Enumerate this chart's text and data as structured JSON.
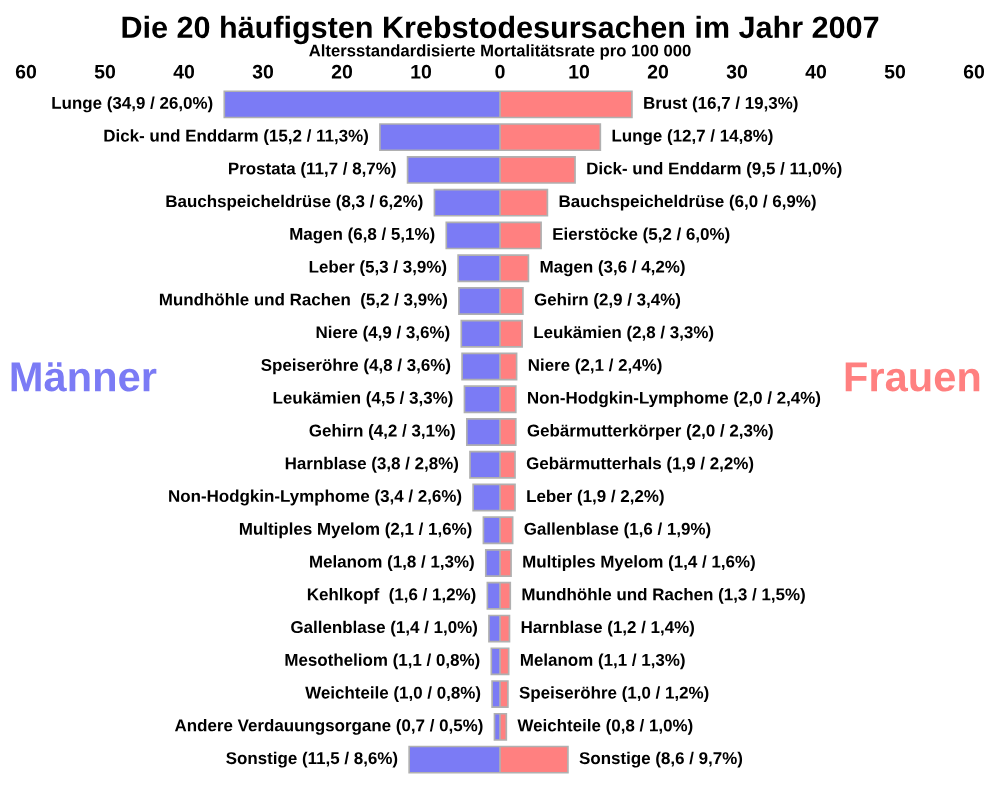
{
  "chart_data": [
    {
      "type": "bar",
      "orientation": "horizontal",
      "title": "Die 20 häufigsten Krebstodesursachen im Jahr 2007",
      "subtitle": "Altersstandardisierte Mortalitätsrate pro 100 000",
      "categories": [
        "Lunge (34,9 / 26,0%)",
        "Dick- und Enddarm (15,2 / 11,3%)",
        "Prostata (11,7 / 8,7%)",
        "Bauchspeicheldrüse (8,3 / 6,2%)",
        "Magen (6,8 / 5,1%)",
        "Leber (5,3 / 3,9%)",
        "Mundhöhle und Rachen  (5,2 / 3,9%)",
        "Niere (4,9 / 3,6%)",
        "Speiseröhre (4,8 / 3,6%)",
        "Leukämien (4,5 / 3,3%)",
        "Gehirn (4,2 / 3,1%)",
        "Harnblase (3,8 / 2,8%)",
        "Non-Hodgkin-Lymphome (3,4 / 2,6%)",
        "Multiples Myelom (2,1 / 1,6%)",
        "Melanom (1,8 / 1,3%)",
        "Kehlkopf  (1,6 / 1,2%)",
        "Gallenblase (1,4 / 1,0%)",
        "Mesotheliom (1,1 / 0,8%)",
        "Weichteile (1,0 / 0,8%)",
        "Andere Verdauungsorgane (0,7 / 0,5%)",
        "Sonstige (11,5 / 8,6%)"
      ],
      "series": [
        {
          "name": "Männer",
          "color": "#7b7bf5",
          "values": [
            34.9,
            15.2,
            11.7,
            8.3,
            6.8,
            5.3,
            5.2,
            4.9,
            4.8,
            4.5,
            4.2,
            3.8,
            3.4,
            2.1,
            1.8,
            1.6,
            1.4,
            1.1,
            1.0,
            0.7,
            11.5
          ]
        }
      ],
      "xlim": [
        60,
        0
      ],
      "xticks": [
        60,
        50,
        40,
        30,
        20,
        10
      ],
      "grid": false,
      "legend": false
    },
    {
      "type": "bar",
      "orientation": "horizontal",
      "categories": [
        "Brust (16,7 / 19,3%)",
        "Lunge (12,7 / 14,8%)",
        "Dick- und Enddarm (9,5 / 11,0%)",
        "Bauchspeicheldrüse (6,0 / 6,9%)",
        "Eierstöcke (5,2 / 6,0%)",
        "Magen (3,6 / 4,2%)",
        "Gehirn (2,9 / 3,4%)",
        "Leukämien (2,8 / 3,3%)",
        "Niere (2,1 / 2,4%)",
        "Non-Hodgkin-Lymphome (2,0 / 2,4%)",
        "Gebärmutterkörper (2,0 / 2,3%)",
        "Gebärmutterhals (1,9 / 2,2%)",
        "Leber (1,9 / 2,2%)",
        "Gallenblase (1,6 / 1,9%)",
        "Multiples Myelom (1,4 / 1,6%)",
        "Mundhöhle und Rachen (1,3 / 1,5%)",
        "Harnblase (1,2 / 1,4%)",
        "Melanom (1,1 / 1,3%)",
        "Speiseröhre (1,0 / 1,2%)",
        "Weichteile (0,8 / 1,0%)",
        "Sonstige (8,6 / 9,7%)"
      ],
      "series": [
        {
          "name": "Frauen",
          "color": "#ff8080",
          "values": [
            16.7,
            12.7,
            9.5,
            6.0,
            5.2,
            3.6,
            2.9,
            2.8,
            2.1,
            2.0,
            2.0,
            1.9,
            1.9,
            1.6,
            1.4,
            1.3,
            1.2,
            1.1,
            1.0,
            0.8,
            8.6
          ]
        }
      ],
      "xlim": [
        0,
        60
      ],
      "xticks": [
        0,
        10,
        20,
        30,
        40,
        50,
        60
      ],
      "grid": false,
      "legend": false
    }
  ]
}
